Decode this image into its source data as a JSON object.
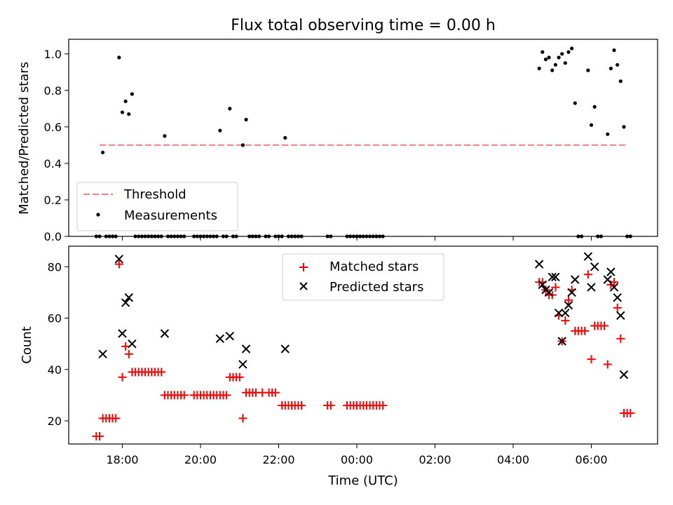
{
  "title": "Flux total observing time = 0.00 h",
  "colors": {
    "threshold": "#f08080",
    "measurements": "#000000",
    "matched": "#ff0000",
    "predicted": "#000000"
  },
  "chart_data": [
    {
      "type": "scatter",
      "panel": "top",
      "ylabel": "Matched/Predicted stars",
      "ylim": [
        0,
        1.08
      ],
      "yticks": [
        0.0,
        0.2,
        0.4,
        0.6,
        0.8,
        1.0
      ],
      "ytick_labels": [
        "0.0",
        "0.2",
        "0.4",
        "0.6",
        "0.8",
        "1.0"
      ],
      "legend": {
        "position": "lower-left",
        "entries": [
          "Threshold",
          "Measurements"
        ]
      },
      "threshold": {
        "name": "Threshold",
        "value": 0.5,
        "x_range": [
          "17:25",
          "06:55"
        ]
      },
      "series": [
        {
          "name": "Measurements",
          "points": [
            [
              "17:30",
              0.46
            ],
            [
              "17:55",
              0.98
            ],
            [
              "18:00",
              0.68
            ],
            [
              "18:05",
              0.74
            ],
            [
              "18:10",
              0.67
            ],
            [
              "18:15",
              0.78
            ],
            [
              "19:05",
              0.55
            ],
            [
              "20:30",
              0.58
            ],
            [
              "20:45",
              0.7
            ],
            [
              "21:05",
              0.5
            ],
            [
              "21:10",
              0.64
            ],
            [
              "22:10",
              0.54
            ],
            [
              "04:40",
              0.92
            ],
            [
              "04:45",
              1.01
            ],
            [
              "04:50",
              0.97
            ],
            [
              "04:55",
              0.98
            ],
            [
              "05:00",
              0.91
            ],
            [
              "05:05",
              0.94
            ],
            [
              "05:10",
              0.98
            ],
            [
              "05:15",
              1.0
            ],
            [
              "05:20",
              0.95
            ],
            [
              "05:25",
              1.01
            ],
            [
              "05:30",
              1.03
            ],
            [
              "05:35",
              0.73
            ],
            [
              "05:55",
              0.91
            ],
            [
              "06:00",
              0.61
            ],
            [
              "06:05",
              0.71
            ],
            [
              "06:25",
              0.56
            ],
            [
              "06:30",
              0.92
            ],
            [
              "06:35",
              1.02
            ],
            [
              "06:40",
              0.94
            ],
            [
              "06:45",
              0.85
            ],
            [
              "06:50",
              0.6
            ],
            [
              "17:20",
              0
            ],
            [
              "17:25",
              0
            ],
            [
              "17:35",
              0
            ],
            [
              "17:40",
              0
            ],
            [
              "17:45",
              0
            ],
            [
              "17:50",
              0
            ],
            [
              "18:20",
              0
            ],
            [
              "18:25",
              0
            ],
            [
              "18:30",
              0
            ],
            [
              "18:35",
              0
            ],
            [
              "18:40",
              0
            ],
            [
              "18:45",
              0
            ],
            [
              "18:50",
              0
            ],
            [
              "18:55",
              0
            ],
            [
              "19:00",
              0
            ],
            [
              "19:10",
              0
            ],
            [
              "19:15",
              0
            ],
            [
              "19:20",
              0
            ],
            [
              "19:25",
              0
            ],
            [
              "19:30",
              0
            ],
            [
              "19:35",
              0
            ],
            [
              "19:50",
              0
            ],
            [
              "19:55",
              0
            ],
            [
              "20:00",
              0
            ],
            [
              "20:05",
              0
            ],
            [
              "20:10",
              0
            ],
            [
              "20:15",
              0
            ],
            [
              "20:20",
              0
            ],
            [
              "20:25",
              0
            ],
            [
              "20:35",
              0
            ],
            [
              "20:40",
              0
            ],
            [
              "20:50",
              0
            ],
            [
              "20:55",
              0
            ],
            [
              "21:15",
              0
            ],
            [
              "21:20",
              0
            ],
            [
              "21:25",
              0
            ],
            [
              "21:30",
              0
            ],
            [
              "21:40",
              0
            ],
            [
              "21:45",
              0
            ],
            [
              "21:55",
              0
            ],
            [
              "22:00",
              0
            ],
            [
              "22:05",
              0
            ],
            [
              "22:15",
              0
            ],
            [
              "22:20",
              0
            ],
            [
              "22:25",
              0
            ],
            [
              "22:30",
              0
            ],
            [
              "22:35",
              0
            ],
            [
              "23:15",
              0
            ],
            [
              "23:20",
              0
            ],
            [
              "23:45",
              0
            ],
            [
              "23:50",
              0
            ],
            [
              "23:55",
              0
            ],
            [
              "00:00",
              0
            ],
            [
              "00:05",
              0
            ],
            [
              "00:10",
              0
            ],
            [
              "00:15",
              0
            ],
            [
              "00:20",
              0
            ],
            [
              "00:25",
              0
            ],
            [
              "00:30",
              0
            ],
            [
              "00:35",
              0
            ],
            [
              "00:40",
              0
            ],
            [
              "05:40",
              0
            ],
            [
              "05:45",
              0
            ],
            [
              "06:10",
              0
            ],
            [
              "06:15",
              0
            ],
            [
              "06:55",
              0
            ],
            [
              "07:00",
              0
            ]
          ]
        }
      ]
    },
    {
      "type": "scatter",
      "panel": "bottom",
      "xlabel": "Time (UTC)",
      "ylabel": "Count",
      "ylim": [
        11,
        88
      ],
      "yticks": [
        20,
        40,
        60,
        80
      ],
      "xticks": [
        "18:00",
        "20:00",
        "22:00",
        "00:00",
        "02:00",
        "04:00",
        "06:00"
      ],
      "legend": {
        "position": "upper-center",
        "entries": [
          "Matched stars",
          "Predicted stars"
        ]
      },
      "series": [
        {
          "name": "Matched stars",
          "marker": "plus",
          "points": [
            [
              "17:20",
              14
            ],
            [
              "17:25",
              14
            ],
            [
              "17:30",
              21
            ],
            [
              "17:35",
              21
            ],
            [
              "17:40",
              21
            ],
            [
              "17:45",
              21
            ],
            [
              "17:50",
              21
            ],
            [
              "17:55",
              81
            ],
            [
              "18:00",
              37
            ],
            [
              "18:05",
              49
            ],
            [
              "18:10",
              46
            ],
            [
              "18:15",
              39
            ],
            [
              "18:20",
              39
            ],
            [
              "18:25",
              39
            ],
            [
              "18:30",
              39
            ],
            [
              "18:35",
              39
            ],
            [
              "18:40",
              39
            ],
            [
              "18:45",
              39
            ],
            [
              "18:50",
              39
            ],
            [
              "18:55",
              39
            ],
            [
              "19:00",
              39
            ],
            [
              "19:05",
              30
            ],
            [
              "19:10",
              30
            ],
            [
              "19:15",
              30
            ],
            [
              "19:20",
              30
            ],
            [
              "19:25",
              30
            ],
            [
              "19:30",
              30
            ],
            [
              "19:35",
              30
            ],
            [
              "19:50",
              30
            ],
            [
              "19:55",
              30
            ],
            [
              "20:00",
              30
            ],
            [
              "20:05",
              30
            ],
            [
              "20:10",
              30
            ],
            [
              "20:15",
              30
            ],
            [
              "20:20",
              30
            ],
            [
              "20:25",
              30
            ],
            [
              "20:30",
              30
            ],
            [
              "20:35",
              30
            ],
            [
              "20:40",
              30
            ],
            [
              "20:45",
              37
            ],
            [
              "20:50",
              37
            ],
            [
              "20:55",
              37
            ],
            [
              "21:00",
              37
            ],
            [
              "21:05",
              21
            ],
            [
              "21:10",
              31
            ],
            [
              "21:15",
              31
            ],
            [
              "21:20",
              31
            ],
            [
              "21:25",
              31
            ],
            [
              "21:35",
              31
            ],
            [
              "21:45",
              31
            ],
            [
              "21:50",
              31
            ],
            [
              "21:55",
              31
            ],
            [
              "22:05",
              26
            ],
            [
              "22:10",
              26
            ],
            [
              "22:15",
              26
            ],
            [
              "22:20",
              26
            ],
            [
              "22:25",
              26
            ],
            [
              "22:30",
              26
            ],
            [
              "22:35",
              26
            ],
            [
              "23:15",
              26
            ],
            [
              "23:20",
              26
            ],
            [
              "23:45",
              26
            ],
            [
              "23:50",
              26
            ],
            [
              "23:55",
              26
            ],
            [
              "00:00",
              26
            ],
            [
              "00:05",
              26
            ],
            [
              "00:10",
              26
            ],
            [
              "00:15",
              26
            ],
            [
              "00:20",
              26
            ],
            [
              "00:25",
              26
            ],
            [
              "00:30",
              26
            ],
            [
              "00:35",
              26
            ],
            [
              "00:40",
              26
            ],
            [
              "04:40",
              74
            ],
            [
              "04:45",
              74
            ],
            [
              "04:50",
              71
            ],
            [
              "04:55",
              69
            ],
            [
              "05:00",
              69
            ],
            [
              "05:05",
              72
            ],
            [
              "05:10",
              61
            ],
            [
              "05:15",
              51
            ],
            [
              "05:20",
              59
            ],
            [
              "05:25",
              67
            ],
            [
              "05:30",
              71
            ],
            [
              "05:35",
              55
            ],
            [
              "05:40",
              55
            ],
            [
              "05:45",
              55
            ],
            [
              "05:50",
              55
            ],
            [
              "05:55",
              77
            ],
            [
              "06:00",
              44
            ],
            [
              "06:05",
              57
            ],
            [
              "06:10",
              57
            ],
            [
              "06:15",
              57
            ],
            [
              "06:20",
              57
            ],
            [
              "06:25",
              42
            ],
            [
              "06:30",
              73
            ],
            [
              "06:35",
              74
            ],
            [
              "06:40",
              64
            ],
            [
              "06:45",
              52
            ],
            [
              "06:50",
              23
            ],
            [
              "06:55",
              23
            ],
            [
              "07:00",
              23
            ]
          ]
        },
        {
          "name": "Predicted stars",
          "marker": "x",
          "points": [
            [
              "17:30",
              46
            ],
            [
              "17:55",
              83
            ],
            [
              "18:00",
              54
            ],
            [
              "18:05",
              66
            ],
            [
              "18:10",
              68
            ],
            [
              "18:15",
              50
            ],
            [
              "19:05",
              54
            ],
            [
              "20:30",
              52
            ],
            [
              "20:45",
              53
            ],
            [
              "21:05",
              42
            ],
            [
              "21:10",
              48
            ],
            [
              "22:10",
              48
            ],
            [
              "04:40",
              81
            ],
            [
              "04:45",
              73
            ],
            [
              "04:50",
              71
            ],
            [
              "04:55",
              70
            ],
            [
              "05:00",
              76
            ],
            [
              "05:05",
              76
            ],
            [
              "05:10",
              62
            ],
            [
              "05:15",
              51
            ],
            [
              "05:20",
              62
            ],
            [
              "05:25",
              65
            ],
            [
              "05:30",
              70
            ],
            [
              "05:35",
              75
            ],
            [
              "05:55",
              84
            ],
            [
              "06:00",
              72
            ],
            [
              "06:05",
              80
            ],
            [
              "06:25",
              75
            ],
            [
              "06:30",
              78
            ],
            [
              "06:35",
              72
            ],
            [
              "06:40",
              68
            ],
            [
              "06:45",
              61
            ],
            [
              "06:50",
              38
            ]
          ]
        }
      ]
    }
  ]
}
